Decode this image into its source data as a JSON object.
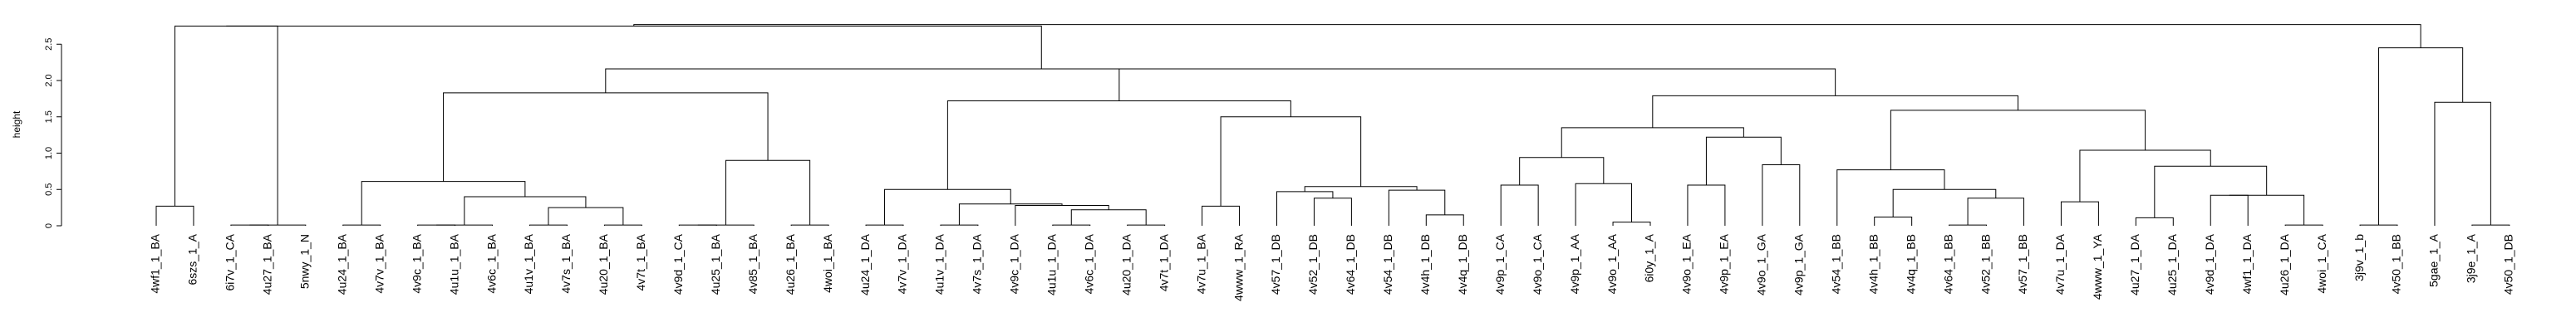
{
  "chart_data": {
    "type": "dendrogram",
    "ylabel": "height",
    "ylim": [
      0,
      2.8
    ],
    "y_ticks": [
      "0",
      "0.5",
      "1.0",
      "1.5",
      "2.0",
      "2.5"
    ],
    "y_tick_values": [
      0,
      0.5,
      1.0,
      1.5,
      2.0,
      2.5
    ],
    "leaves": [
      "4wf1_1_BA",
      "6szs_1_A",
      "6i7v_1_CA",
      "4u27_1_BA",
      "5nwy_1_N",
      "4u24_1_BA",
      "4v7v_1_BA",
      "4v9c_1_BA",
      "4u1u_1_BA",
      "4v6c_1_BA",
      "4u1v_1_BA",
      "4v7s_1_BA",
      "4u20_1_BA",
      "4v7t_1_BA",
      "4v9d_1_CA",
      "4u25_1_BA",
      "4v85_1_BA",
      "4u26_1_BA",
      "4woi_1_BA",
      "4u24_1_DA",
      "4v7v_1_DA",
      "4u1v_1_DA",
      "4v7s_1_DA",
      "4v9c_1_DA",
      "4u1u_1_DA",
      "4v6c_1_DA",
      "4u20_1_DA",
      "4v7t_1_DA",
      "4v7u_1_BA",
      "4www_1_RA",
      "4v57_1_DB",
      "4v52_1_DB",
      "4v64_1_DB",
      "4v54_1_DB",
      "4v4h_1_DB",
      "4v4q_1_DB",
      "4v9p_1_CA",
      "4v9o_1_CA",
      "4v9p_1_AA",
      "4v9o_1_AA",
      "6i0y_1_A",
      "4v9o_1_EA",
      "4v9p_1_EA",
      "4v9o_1_GA",
      "4v9p_1_GA",
      "4v54_1_BB",
      "4v4h_1_BB",
      "4v4q_1_BB",
      "4v64_1_BB",
      "4v52_1_BB",
      "4v57_1_BB",
      "4v7u_1_DA",
      "4www_1_YA",
      "4u27_1_DA",
      "4u25_1_DA",
      "4v9d_1_DA",
      "4wf1_1_DA",
      "4u26_1_DA",
      "4woi_1_CA",
      "3j9v_1_b",
      "4v50_1_BB",
      "5gae_1_A",
      "3j9e_1_A",
      "4v50_1_DB"
    ],
    "merges": [
      {
        "a": "L0",
        "b": "L1",
        "h": 0.27
      },
      {
        "a": "L2",
        "b": "L3",
        "h": 0.01
      },
      {
        "a": "M1",
        "b": "L4",
        "h": 0.01
      },
      {
        "a": "M0",
        "b": "M2",
        "h": 2.75
      },
      {
        "a": "L5",
        "b": "L6",
        "h": 0.01
      },
      {
        "a": "L7",
        "b": "L8",
        "h": 0.01
      },
      {
        "a": "M5",
        "b": "L9",
        "h": 0.01
      },
      {
        "a": "L10",
        "b": "L11",
        "h": 0.01
      },
      {
        "a": "L12",
        "b": "L13",
        "h": 0.01
      },
      {
        "a": "M7",
        "b": "M8",
        "h": 0.25
      },
      {
        "a": "M6",
        "b": "M9",
        "h": 0.4
      },
      {
        "a": "M4",
        "b": "M10",
        "h": 0.61
      },
      {
        "a": "L14",
        "b": "L15",
        "h": 0.01
      },
      {
        "a": "M12",
        "b": "L16",
        "h": 0.01
      },
      {
        "a": "L17",
        "b": "L18",
        "h": 0.01
      },
      {
        "a": "M13",
        "b": "M14",
        "h": 0.9
      },
      {
        "a": "M11",
        "b": "M15",
        "h": 1.83
      },
      {
        "a": "L19",
        "b": "L20",
        "h": 0.01
      },
      {
        "a": "L21",
        "b": "L22",
        "h": 0.01
      },
      {
        "a": "L24",
        "b": "L25",
        "h": 0.01
      },
      {
        "a": "L26",
        "b": "L27",
        "h": 0.01
      },
      {
        "a": "M19",
        "b": "M20",
        "h": 0.22
      },
      {
        "a": "L23",
        "b": "M21",
        "h": 0.28
      },
      {
        "a": "M18",
        "b": "M22",
        "h": 0.3
      },
      {
        "a": "M17",
        "b": "M23",
        "h": 0.5
      },
      {
        "a": "L28",
        "b": "L29",
        "h": 0.27
      },
      {
        "a": "L31",
        "b": "L32",
        "h": 0.38
      },
      {
        "a": "L30",
        "b": "M26",
        "h": 0.47
      },
      {
        "a": "L34",
        "b": "L35",
        "h": 0.15
      },
      {
        "a": "L33",
        "b": "M28",
        "h": 0.49
      },
      {
        "a": "M27",
        "b": "M29",
        "h": 0.54
      },
      {
        "a": "M25",
        "b": "M30",
        "h": 1.5
      },
      {
        "a": "M24",
        "b": "M31",
        "h": 1.72
      },
      {
        "a": "L36",
        "b": "L37",
        "h": 0.56
      },
      {
        "a": "L39",
        "b": "L40",
        "h": 0.05
      },
      {
        "a": "L38",
        "b": "M34",
        "h": 0.58
      },
      {
        "a": "M33",
        "b": "M35",
        "h": 0.94
      },
      {
        "a": "L41",
        "b": "L42",
        "h": 0.56
      },
      {
        "a": "L43",
        "b": "L44",
        "h": 0.84
      },
      {
        "a": "M37",
        "b": "M38",
        "h": 1.22
      },
      {
        "a": "M36",
        "b": "M39",
        "h": 1.35
      },
      {
        "a": "L46",
        "b": "L47",
        "h": 0.12
      },
      {
        "a": "L48",
        "b": "L49",
        "h": 0.01
      },
      {
        "a": "L50",
        "b": "M42",
        "h": 0.38
      },
      {
        "a": "M41",
        "b": "M43",
        "h": 0.5
      },
      {
        "a": "L45",
        "b": "M44",
        "h": 0.77
      },
      {
        "a": "L51",
        "b": "L52",
        "h": 0.33
      },
      {
        "a": "L53",
        "b": "L54",
        "h": 0.11
      },
      {
        "a": "L55",
        "b": "L56",
        "h": 0.42
      },
      {
        "a": "L57",
        "b": "L58",
        "h": 0.01
      },
      {
        "a": "M48",
        "b": "M49",
        "h": 0.42
      },
      {
        "a": "M47",
        "b": "M50",
        "h": 0.82
      },
      {
        "a": "M46",
        "b": "M51",
        "h": 1.04
      },
      {
        "a": "M45",
        "b": "M52",
        "h": 1.59
      },
      {
        "a": "M40",
        "b": "M53",
        "h": 1.79
      },
      {
        "a": "M32",
        "b": "M54",
        "h": 2.16
      },
      {
        "a": "M16",
        "b": "M55",
        "h": 2.16
      },
      {
        "a": "M3",
        "b": "M56",
        "h": 2.75
      },
      {
        "a": "L59",
        "b": "L60",
        "h": 0.01
      },
      {
        "a": "L62",
        "b": "L63",
        "h": 0.01
      },
      {
        "a": "L61",
        "b": "M59",
        "h": 1.7
      },
      {
        "a": "M58",
        "b": "M60",
        "h": 2.45
      },
      {
        "a": "M57",
        "b": "M61",
        "h": 2.77
      }
    ]
  }
}
